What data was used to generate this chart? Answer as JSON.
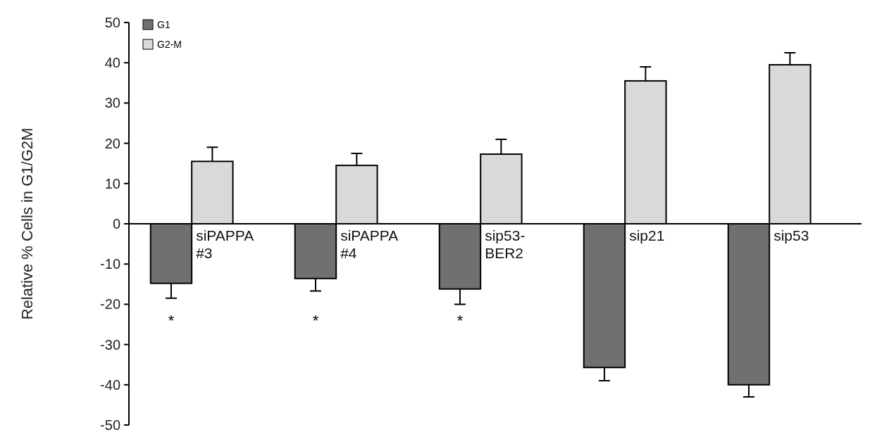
{
  "chart_data": {
    "type": "bar",
    "ylabel": "Relative % Cells in G1/G2M",
    "categories": [
      "siPAPPA #3",
      "siPAPPA #4",
      "sip53-BER2",
      "sip21",
      "sip53"
    ],
    "series": [
      {
        "name": "G1",
        "color": "#707070",
        "values": [
          -14.8,
          -13.6,
          -16.2,
          -35.7,
          -40
        ],
        "errors": [
          [
            -18.5,
            -14.8
          ],
          [
            -16.7,
            -13.6
          ],
          [
            -20,
            -16.2
          ],
          [
            -39,
            -35.7
          ],
          [
            -43,
            -40
          ]
        ]
      },
      {
        "name": "G2-M",
        "color": "#d9d9d9",
        "values": [
          15.5,
          14.5,
          17.3,
          35.5,
          39.5
        ],
        "errors": [
          [
            15.5,
            19
          ],
          [
            14.5,
            17.5
          ],
          [
            17.3,
            21
          ],
          [
            35.5,
            39
          ],
          [
            39.5,
            42.5
          ]
        ]
      }
    ],
    "ylim": [
      -50,
      50
    ],
    "yticks": [
      -50,
      -40,
      -30,
      -20,
      -10,
      0,
      10,
      20,
      30,
      40,
      50
    ],
    "legend": "top left",
    "grid": false,
    "annotations": [
      "*",
      "*",
      "*"
    ]
  }
}
